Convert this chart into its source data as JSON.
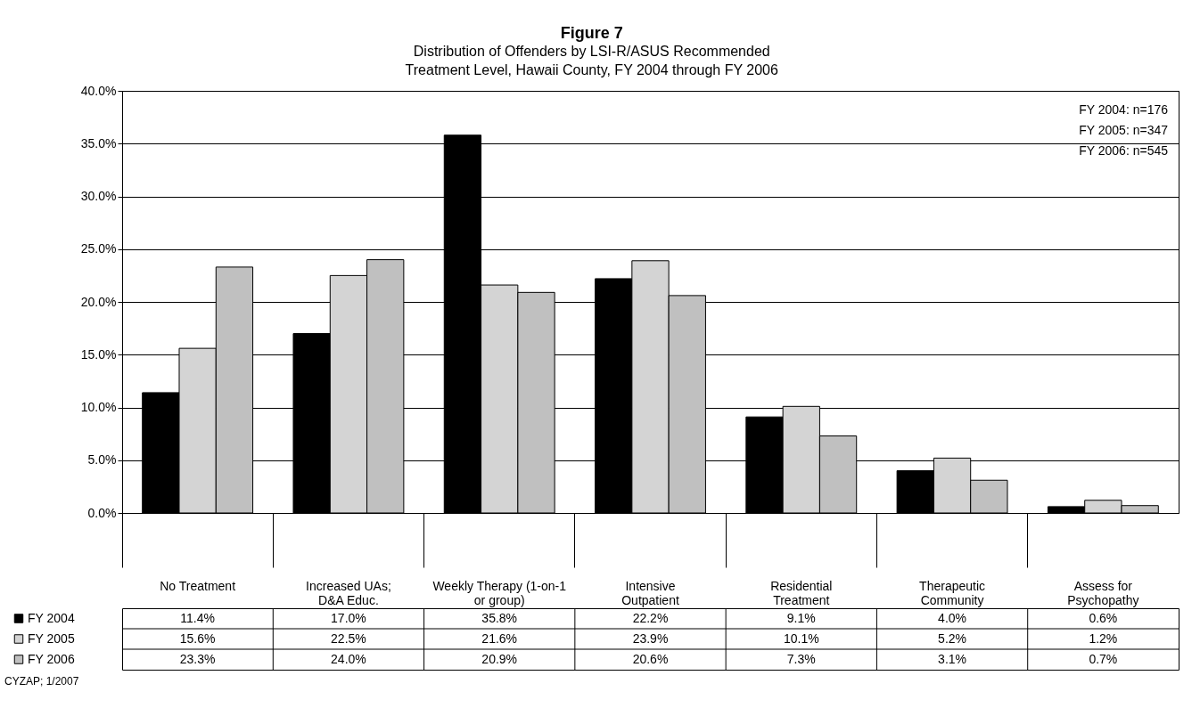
{
  "chart_data": {
    "type": "bar",
    "title": "Figure 7",
    "subtitle": "Distribution of Offenders by LSI-R/ASUS Recommended Treatment Level, Hawaii County, FY 2004 through FY 2006",
    "categories": [
      "No Treatment",
      "Increased UAs; D&A Educ.",
      "Weekly Therapy (1-on-1 or group)",
      "Intensive Outpatient",
      "Residential Treatment",
      "Therapeutic Community",
      "Assess for Psychopathy"
    ],
    "series": [
      {
        "name": "FY 2004",
        "color": "#000000",
        "values": [
          11.4,
          17.0,
          35.8,
          22.2,
          9.1,
          4.0,
          0.6
        ],
        "value_labels": [
          "11.4%",
          "17.0%",
          "35.8%",
          "22.2%",
          "9.1%",
          "4.0%",
          "0.6%"
        ]
      },
      {
        "name": "FY 2005",
        "color": "#d4d4d4",
        "values": [
          15.6,
          22.5,
          21.6,
          23.9,
          10.1,
          5.2,
          1.2
        ],
        "value_labels": [
          "15.6%",
          "22.5%",
          "21.6%",
          "23.9%",
          "10.1%",
          "5.2%",
          "1.2%"
        ]
      },
      {
        "name": "FY 2006",
        "color": "#c0c0c0",
        "values": [
          23.3,
          24.0,
          20.9,
          20.6,
          7.3,
          3.1,
          0.7
        ],
        "value_labels": [
          "23.3%",
          "24.0%",
          "20.9%",
          "20.6%",
          "7.3%",
          "3.1%",
          "0.7%"
        ]
      }
    ],
    "ylim": [
      0,
      40
    ],
    "yticks": [
      {
        "value": 0,
        "label": "0.0%"
      },
      {
        "value": 5,
        "label": "5.0%"
      },
      {
        "value": 10,
        "label": "10.0%"
      },
      {
        "value": 15,
        "label": "15.0%"
      },
      {
        "value": 20,
        "label": "20.0%"
      },
      {
        "value": 25,
        "label": "25.0%"
      },
      {
        "value": 30,
        "label": "30.0%"
      },
      {
        "value": 35,
        "label": "35.0%"
      },
      {
        "value": 40,
        "label": "40.0%"
      }
    ],
    "grid": "y",
    "legend": "bottom left",
    "annotations": [
      "FY 2004: n=176",
      "FY 2005: n=347",
      "FY 2006: n=545",
      "CYZAP; 1/2007"
    ]
  }
}
